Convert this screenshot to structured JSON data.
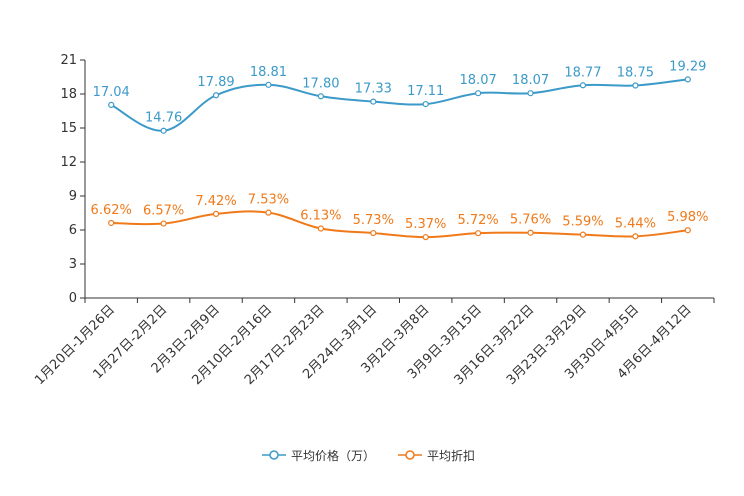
{
  "chart_data": {
    "type": "line",
    "title": "",
    "xlabel": "",
    "ylabel": "",
    "ylim": [
      0,
      21
    ],
    "yticks": [
      0,
      3,
      6,
      9,
      12,
      15,
      18,
      21
    ],
    "grid": false,
    "legend_position": "bottom-center",
    "categories": [
      "1月20日-1月26日",
      "1月27日-2月2日",
      "2月3日-2月9日",
      "2月10日-2月16日",
      "2月17日-2月23日",
      "2月24日-3月1日",
      "3月2日-3月8日",
      "3月9日-3月15日",
      "3月16日-3月22日",
      "3月23日-3月29日",
      "3月30日-4月5日",
      "4月6日-4月12日"
    ],
    "series": [
      {
        "name": "平均价格（万）",
        "color": "#3c9ac9",
        "values": [
          17.04,
          14.76,
          17.89,
          18.81,
          17.8,
          17.33,
          17.11,
          18.07,
          18.07,
          18.77,
          18.75,
          19.29
        ],
        "labels": [
          "17.04",
          "14.76",
          "17.89",
          "18.81",
          "17.80",
          "17.33",
          "17.11",
          "18.07",
          "18.07",
          "18.77",
          "18.75",
          "19.29"
        ]
      },
      {
        "name": "平均折扣",
        "color": "#f07a1a",
        "values": [
          6.62,
          6.57,
          7.42,
          7.53,
          6.13,
          5.73,
          5.37,
          5.72,
          5.76,
          5.59,
          5.44,
          5.98
        ],
        "labels": [
          "6.62%",
          "6.57%",
          "7.42%",
          "7.53%",
          "6.13%",
          "5.73%",
          "5.37%",
          "5.72%",
          "5.76%",
          "5.59%",
          "5.44%",
          "5.98%"
        ]
      }
    ]
  }
}
